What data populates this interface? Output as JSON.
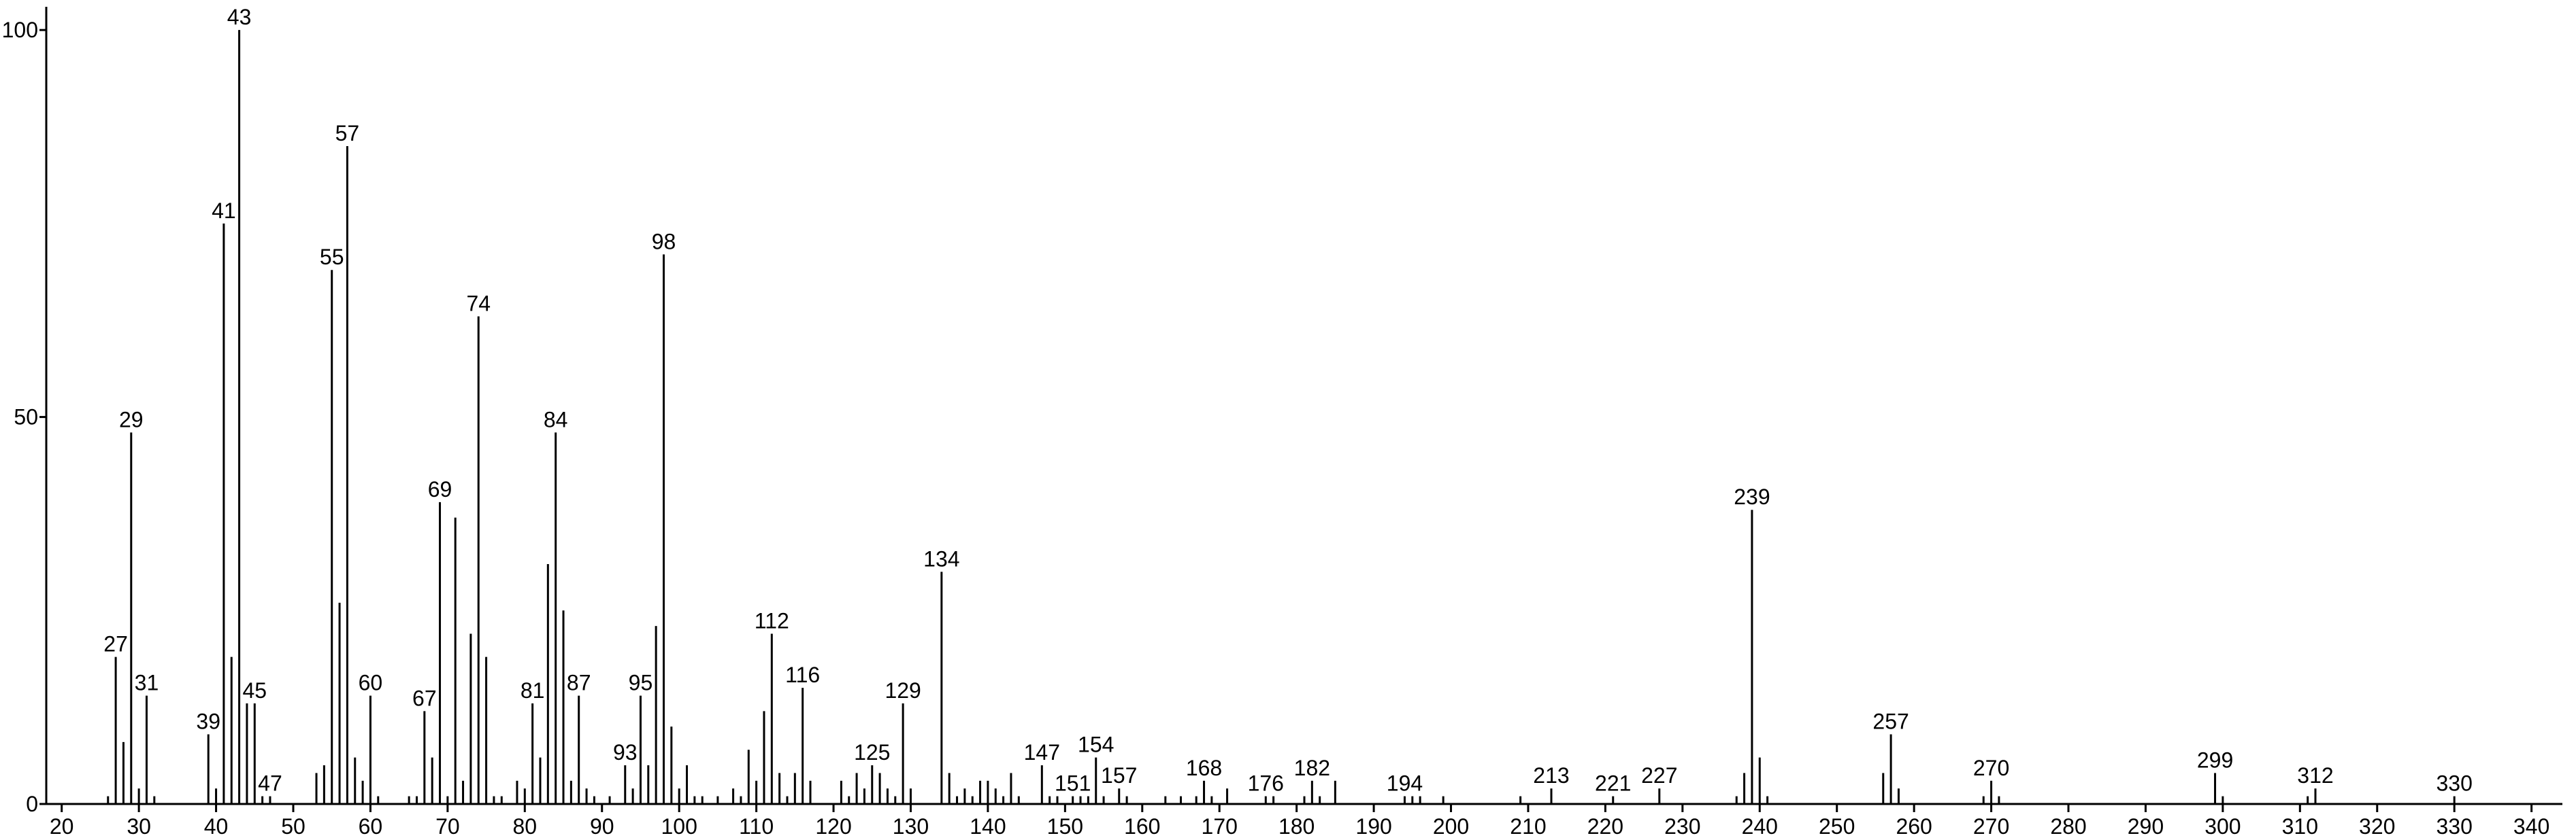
{
  "chart_data": {
    "type": "stem",
    "color": "#000000",
    "x": [
      26,
      28,
      30,
      32,
      40,
      42,
      44,
      46,
      53,
      54,
      56,
      58,
      59,
      61,
      65,
      66,
      68,
      70,
      71,
      72,
      73,
      75,
      76,
      77,
      79,
      80,
      82,
      83,
      85,
      86,
      88,
      89,
      91,
      94,
      96,
      97,
      99,
      100,
      101,
      102,
      103,
      105,
      107,
      108,
      109,
      110,
      111,
      113,
      114,
      115,
      117,
      121,
      122,
      123,
      124,
      126,
      127,
      128,
      130,
      135,
      136,
      137,
      138,
      139,
      140,
      141,
      142,
      143,
      144,
      148,
      149,
      152,
      153,
      155,
      158,
      163,
      165,
      167,
      169,
      171,
      177,
      181,
      183,
      185,
      195,
      196,
      199,
      209,
      237,
      238,
      240,
      241,
      256,
      258,
      269,
      271,
      300,
      311
    ],
    "values": [
      1,
      8,
      2,
      1,
      2,
      19,
      13,
      1,
      4,
      5,
      26,
      6,
      3,
      1,
      1,
      1,
      6,
      1,
      37,
      3,
      22,
      19,
      1,
      1,
      3,
      2,
      6,
      31,
      25,
      3,
      2,
      1,
      1,
      2,
      5,
      23,
      10,
      2,
      5,
      1,
      1,
      1,
      2,
      1,
      7,
      3,
      12,
      4,
      1,
      4,
      3,
      3,
      1,
      4,
      2,
      4,
      2,
      1,
      2,
      4,
      1,
      2,
      1,
      3,
      3,
      2,
      1,
      4,
      1,
      1,
      1,
      1,
      1,
      1,
      1,
      1,
      1,
      1,
      1,
      2,
      1,
      1,
      1,
      3,
      1,
      1,
      1,
      1,
      1,
      4,
      6,
      1,
      4,
      2,
      1,
      1,
      1,
      1
    ],
    "labeled_x": [
      27,
      29,
      31,
      39,
      41,
      43,
      45,
      47,
      55,
      57,
      60,
      67,
      69,
      74,
      81,
      84,
      87,
      93,
      95,
      98,
      112,
      116,
      125,
      129,
      134,
      147,
      151,
      154,
      157,
      168,
      176,
      182,
      194,
      213,
      221,
      227,
      239,
      257,
      270,
      299,
      312,
      330
    ],
    "labeled_values": [
      19,
      48,
      14,
      9,
      75,
      100,
      13,
      1,
      69,
      85,
      14,
      12,
      39,
      63,
      13,
      48,
      14,
      5,
      14,
      71,
      22,
      15,
      5,
      13,
      30,
      5,
      1,
      6,
      2,
      3,
      1,
      3,
      1,
      2,
      1,
      2,
      38,
      9,
      3,
      4,
      2,
      1
    ],
    "xlim": [
      18,
      344
    ],
    "xticks": [
      20,
      30,
      40,
      50,
      60,
      70,
      80,
      90,
      100,
      110,
      120,
      130,
      140,
      150,
      160,
      170,
      180,
      190,
      200,
      210,
      220,
      230,
      240,
      250,
      260,
      270,
      280,
      290,
      300,
      310,
      320,
      330,
      340
    ],
    "ylim": [
      0,
      103
    ],
    "yticks": [
      0,
      50,
      100
    ]
  }
}
